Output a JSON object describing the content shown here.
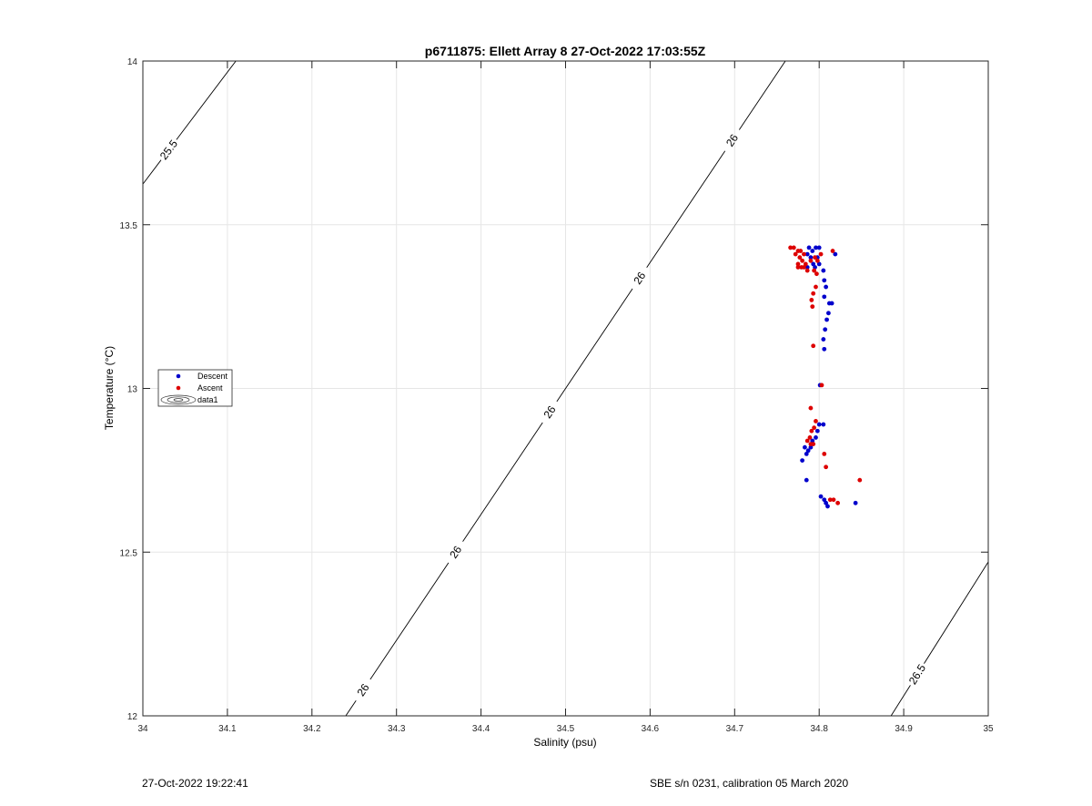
{
  "footer": {
    "left": "27-Oct-2022 19:22:41",
    "right": "SBE s/n 0231, calibration 05 March 2020"
  },
  "chart_data": {
    "type": "scatter",
    "title": "p6711875: Ellett Array 8 27-Oct-2022 17:03:55Z",
    "xlabel": "Salinity (psu)",
    "ylabel": "Temperature (°C)",
    "xlim": [
      34,
      35
    ],
    "ylim": [
      12,
      14
    ],
    "xticks": [
      "34",
      "34.1",
      "34.2",
      "34.3",
      "34.4",
      "34.5",
      "34.6",
      "34.7",
      "34.8",
      "34.9",
      "35"
    ],
    "yticks": [
      "12",
      "12.5",
      "13",
      "13.5",
      "14"
    ],
    "grid": true,
    "legend": {
      "placement": "left-middle",
      "entries": [
        "Descent",
        "Ascent",
        "data1"
      ]
    },
    "colors": {
      "descent": "#0000cc",
      "ascent": "#dd0000",
      "contour": "#000000",
      "grid": "#e6e6e6"
    },
    "contours": [
      {
        "label": "25.5",
        "points": [
          [
            33.99,
            13.59
          ],
          [
            34.11,
            14.0
          ]
        ],
        "label_at": [
          [
            34.03,
            13.73
          ]
        ]
      },
      {
        "label": "26",
        "points": [
          [
            34.24,
            12.0
          ],
          [
            34.76,
            14.0
          ]
        ],
        "label_at": [
          [
            34.26,
            12.08
          ],
          [
            34.37,
            12.5
          ],
          [
            34.48,
            12.93
          ],
          [
            34.58,
            13.35
          ],
          [
            34.69,
            13.77
          ]
        ]
      },
      {
        "label": "26.5",
        "points": [
          [
            34.885,
            12.0
          ],
          [
            35.0,
            12.47
          ]
        ],
        "label_at": [
          [
            34.92,
            12.12
          ]
        ]
      }
    ],
    "series": [
      {
        "name": "Descent",
        "points": [
          [
            34.8,
            13.43
          ],
          [
            34.796,
            13.43
          ],
          [
            34.792,
            13.42
          ],
          [
            34.786,
            13.41
          ],
          [
            34.788,
            13.43
          ],
          [
            34.79,
            13.4
          ],
          [
            34.798,
            13.4
          ],
          [
            34.8,
            13.38
          ],
          [
            34.793,
            13.38
          ],
          [
            34.786,
            13.37
          ],
          [
            34.795,
            13.37
          ],
          [
            34.805,
            13.36
          ],
          [
            34.806,
            13.33
          ],
          [
            34.808,
            13.31
          ],
          [
            34.806,
            13.28
          ],
          [
            34.819,
            13.41
          ],
          [
            34.812,
            13.26
          ],
          [
            34.815,
            13.26
          ],
          [
            34.811,
            13.23
          ],
          [
            34.809,
            13.21
          ],
          [
            34.807,
            13.18
          ],
          [
            34.805,
            13.15
          ],
          [
            34.806,
            13.12
          ],
          [
            34.801,
            13.01
          ],
          [
            34.8,
            12.89
          ],
          [
            34.805,
            12.89
          ],
          [
            34.798,
            12.87
          ],
          [
            34.796,
            12.85
          ],
          [
            34.792,
            12.84
          ],
          [
            34.79,
            12.82
          ],
          [
            34.787,
            12.81
          ],
          [
            34.785,
            12.8
          ],
          [
            34.783,
            12.82
          ],
          [
            34.78,
            12.78
          ],
          [
            34.785,
            12.72
          ],
          [
            34.802,
            12.67
          ],
          [
            34.806,
            12.66
          ],
          [
            34.808,
            12.65
          ],
          [
            34.81,
            12.64
          ],
          [
            34.843,
            12.65
          ]
        ]
      },
      {
        "name": "Ascent",
        "points": [
          [
            34.766,
            13.43
          ],
          [
            34.77,
            13.43
          ],
          [
            34.775,
            13.42
          ],
          [
            34.778,
            13.42
          ],
          [
            34.782,
            13.41
          ],
          [
            34.772,
            13.41
          ],
          [
            34.777,
            13.4
          ],
          [
            34.78,
            13.39
          ],
          [
            34.775,
            13.38
          ],
          [
            34.784,
            13.38
          ],
          [
            34.779,
            13.37
          ],
          [
            34.782,
            13.37
          ],
          [
            34.775,
            13.37
          ],
          [
            34.79,
            13.39
          ],
          [
            34.795,
            13.4
          ],
          [
            34.798,
            13.39
          ],
          [
            34.802,
            13.41
          ],
          [
            34.794,
            13.36
          ],
          [
            34.797,
            13.35
          ],
          [
            34.786,
            13.36
          ],
          [
            34.816,
            13.42
          ],
          [
            34.796,
            13.31
          ],
          [
            34.793,
            13.29
          ],
          [
            34.791,
            13.27
          ],
          [
            34.792,
            13.25
          ],
          [
            34.793,
            13.13
          ],
          [
            34.803,
            13.01
          ],
          [
            34.79,
            12.94
          ],
          [
            34.796,
            12.9
          ],
          [
            34.794,
            12.88
          ],
          [
            34.791,
            12.87
          ],
          [
            34.789,
            12.85
          ],
          [
            34.786,
            12.84
          ],
          [
            34.79,
            12.83
          ],
          [
            34.793,
            12.83
          ],
          [
            34.806,
            12.8
          ],
          [
            34.808,
            12.76
          ],
          [
            34.813,
            12.66
          ],
          [
            34.817,
            12.66
          ],
          [
            34.822,
            12.65
          ],
          [
            34.848,
            12.72
          ]
        ]
      }
    ]
  }
}
